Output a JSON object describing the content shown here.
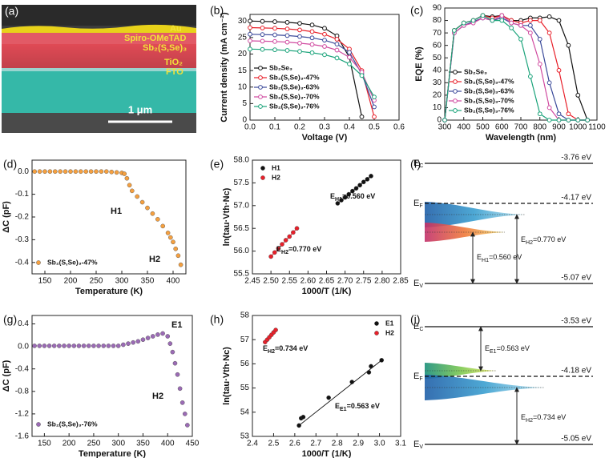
{
  "image_panel": {
    "panel": "(a)",
    "layers": [
      "Au",
      "Spiro-OMeTAD",
      "Sb₂(S,Se)₃",
      "TiO₂",
      "FTO"
    ],
    "scale_bar": "1 μm"
  },
  "chart_data": [
    {
      "panel": "(b)",
      "type": "line",
      "xlabel": "Voltage (V)",
      "ylabel": "Current density (mA cm⁻²)",
      "x": [
        0,
        0.05,
        0.1,
        0.15,
        0.2,
        0.25,
        0.3,
        0.35,
        0.4,
        0.45,
        0.5,
        0.55
      ],
      "xlim": [
        0,
        0.6
      ],
      "xticks": [
        {
          "value": 0,
          "label": "0.0"
        },
        0.1,
        0.2,
        0.3,
        0.4,
        0.5,
        0.6
      ],
      "ylim": [
        0,
        32
      ],
      "yticks": [
        0,
        5,
        10,
        15,
        20,
        25,
        30
      ],
      "legend": "lower left",
      "series": [
        {
          "name": "Sb₂Se₃",
          "color": "#111111",
          "values": [
            30,
            29.9,
            29.8,
            29.6,
            29.3,
            28.8,
            27.8,
            25.5,
            19,
            1,
            null,
            null
          ]
        },
        {
          "name": "Sb₂(S,Se)₃-47%",
          "color": "#e8202a",
          "values": [
            28,
            27.9,
            27.8,
            27.6,
            27.3,
            26.8,
            26,
            24.5,
            21.5,
            15,
            1,
            null
          ]
        },
        {
          "name": "Sb₂(S,Se)₃-63%",
          "color": "#3b4a9a",
          "values": [
            26,
            25.9,
            25.8,
            25.6,
            25.3,
            24.9,
            24.2,
            23,
            20.5,
            14,
            4,
            null
          ]
        },
        {
          "name": "Sb₂(S,Se)₃-70%",
          "color": "#d04aa0",
          "values": [
            24,
            23.9,
            23.8,
            23.6,
            23.3,
            22.9,
            22.3,
            21.2,
            19,
            14.5,
            6,
            null
          ]
        },
        {
          "name": "Sb₂(S,Se)₃-76%",
          "color": "#1aa37a",
          "values": [
            21.5,
            21.4,
            21.3,
            21.1,
            20.8,
            20.4,
            19.8,
            18.8,
            17,
            13.5,
            7,
            null
          ]
        }
      ]
    },
    {
      "panel": "(c)",
      "type": "line",
      "xlabel": "Wavelength (nm)",
      "ylabel": "EQE (%)",
      "x": [
        300,
        350,
        400,
        450,
        500,
        550,
        600,
        650,
        700,
        750,
        800,
        850,
        900,
        950,
        1000,
        1050
      ],
      "xlim": [
        300,
        1100
      ],
      "xticks": [
        300,
        400,
        500,
        600,
        700,
        800,
        900,
        1000,
        1100
      ],
      "ylim": [
        0,
        90
      ],
      "yticks": [
        0,
        10,
        20,
        30,
        40,
        50,
        60,
        70,
        80,
        90
      ],
      "legend": "lower left",
      "series": [
        {
          "name": "Sb₂Se₃",
          "color": "#111111",
          "values": [
            0,
            72,
            78,
            80,
            84,
            83,
            84,
            80,
            80,
            82,
            82,
            83,
            80,
            60,
            20,
            0
          ]
        },
        {
          "name": "Sb₂(S,Se)₃-47%",
          "color": "#e8202a",
          "values": [
            0,
            72,
            78,
            80,
            84,
            82,
            84,
            80,
            78,
            80,
            80,
            70,
            40,
            5,
            0,
            0
          ]
        },
        {
          "name": "Sb₂(S,Se)₃-63%",
          "color": "#3b4a9a",
          "values": [
            0,
            70,
            76,
            79,
            82,
            80,
            82,
            78,
            76,
            76,
            65,
            30,
            5,
            0,
            0,
            0
          ]
        },
        {
          "name": "Sb₂(S,Se)₃-70%",
          "color": "#d04aa0",
          "values": [
            0,
            70,
            76,
            78,
            82,
            80,
            84,
            78,
            76,
            70,
            45,
            10,
            0,
            0,
            0,
            0
          ]
        },
        {
          "name": "Sb₂(S,Se)₃-76%",
          "color": "#1aa37a",
          "values": [
            0,
            72,
            78,
            80,
            84,
            80,
            80,
            74,
            65,
            35,
            5,
            0,
            0,
            0,
            0,
            0
          ]
        }
      ]
    },
    {
      "panel": "(d)",
      "type": "scatter",
      "xlabel": "Temperature (K)",
      "ylabel": "ΔC (pF)",
      "x": [
        130,
        140,
        150,
        160,
        170,
        180,
        190,
        200,
        210,
        220,
        230,
        240,
        250,
        260,
        270,
        280,
        290,
        300,
        305,
        310,
        315,
        320,
        330,
        340,
        350,
        360,
        370,
        380,
        390,
        395,
        400,
        405,
        410,
        415
      ],
      "xlim": [
        125,
        425
      ],
      "xticks": [
        150,
        200,
        250,
        300,
        350,
        400
      ],
      "ylim": [
        -0.45,
        0.05
      ],
      "yticks": [
        -0.4,
        -0.3,
        -0.2,
        -0.1,
        {
          "value": 0,
          "label": "0.0"
        }
      ],
      "legend": "lower left",
      "series": [
        {
          "name": "Sb₂(S,Se)₃-47%",
          "color": "#f5a040",
          "values": [
            0,
            0,
            0,
            0,
            0,
            0,
            0,
            0,
            0,
            0,
            0,
            0,
            0,
            0,
            0,
            -0.002,
            -0.004,
            -0.006,
            -0.01,
            -0.03,
            -0.06,
            -0.085,
            -0.11,
            -0.135,
            -0.16,
            -0.185,
            -0.21,
            -0.24,
            -0.27,
            -0.29,
            -0.31,
            -0.34,
            -0.37,
            -0.41
          ]
        }
      ],
      "annotations": [
        {
          "text": "H1"
        },
        {
          "text": "H2"
        }
      ]
    },
    {
      "panel": "(e)",
      "type": "scatter",
      "xlabel": "1000/T (1/K)",
      "ylabel": "ln(tau·Vth·Nc)",
      "xlim": [
        2.45,
        2.85
      ],
      "xticks": [
        2.45,
        {
          "value": 2.5,
          "label": "2.50"
        },
        2.55,
        {
          "value": 2.6,
          "label": "2.60"
        },
        2.65,
        {
          "value": 2.7,
          "label": "2.70"
        },
        2.75,
        {
          "value": 2.8,
          "label": "2.80"
        },
        2.85
      ],
      "ylim": [
        55.5,
        58
      ],
      "yticks": [
        55.5,
        {
          "value": 56,
          "label": "56.0"
        },
        56.5,
        {
          "value": 57,
          "label": "57.0"
        },
        57.5,
        {
          "value": 58,
          "label": "58.0"
        }
      ],
      "legend": "upper left",
      "series": [
        {
          "name": "H1",
          "color": "#111111",
          "x": [
            2.68,
            2.69,
            2.7,
            2.71,
            2.72,
            2.73,
            2.74,
            2.75,
            2.76,
            2.77
          ],
          "values": [
            57.05,
            57.12,
            57.18,
            57.25,
            57.32,
            57.38,
            57.45,
            57.52,
            57.58,
            57.65
          ]
        },
        {
          "name": "H2",
          "color": "#e8202a",
          "x": [
            2.5,
            2.51,
            2.52,
            2.53,
            2.54,
            2.55,
            2.56,
            2.57
          ],
          "values": [
            55.88,
            55.97,
            56.06,
            56.15,
            56.24,
            56.32,
            56.41,
            56.5
          ]
        }
      ],
      "annotations": [
        {
          "symbol": "E",
          "sub": "H1",
          "text": "=0.560 eV"
        },
        {
          "symbol": "E",
          "sub": "H2",
          "text": "=0.770 eV"
        }
      ]
    },
    {
      "panel": "(g)",
      "type": "scatter",
      "xlabel": "Temperature (K)",
      "ylabel": "ΔC (pF)",
      "x": [
        130,
        140,
        150,
        160,
        170,
        180,
        190,
        200,
        210,
        220,
        230,
        240,
        250,
        260,
        270,
        280,
        290,
        300,
        310,
        320,
        330,
        340,
        350,
        360,
        370,
        380,
        390,
        400,
        405,
        410,
        415,
        420,
        425,
        430,
        435,
        440
      ],
      "xlim": [
        125,
        450
      ],
      "xticks": [
        150,
        200,
        250,
        300,
        350,
        400,
        450
      ],
      "ylim": [
        -1.6,
        0.55
      ],
      "yticks": [
        -1.6,
        -1.2,
        -0.8,
        -0.4,
        {
          "value": 0,
          "label": "0.0"
        },
        0.4
      ],
      "legend": "lower left",
      "series": [
        {
          "name": "Sb₂(S,Se)₃-76%",
          "color": "#9b6bb5",
          "values": [
            0.01,
            0.01,
            0.01,
            0.01,
            0.01,
            0.01,
            0.01,
            0.01,
            0.01,
            0.01,
            0.01,
            0.01,
            0.01,
            0.01,
            0.01,
            0.01,
            0.01,
            0.01,
            0.03,
            0.05,
            0.07,
            0.09,
            0.12,
            0.15,
            0.18,
            0.21,
            0.23,
            0.18,
            0.05,
            -0.1,
            -0.3,
            -0.5,
            -0.75,
            -1,
            -1.2,
            -1.4
          ]
        }
      ],
      "annotations": [
        {
          "text": "E1"
        },
        {
          "text": "H2"
        }
      ]
    },
    {
      "panel": "(h)",
      "type": "scatter",
      "xlabel": "1000/T (1/K)",
      "ylabel": "ln(tau·Vth·Nc)",
      "xlim": [
        2.4,
        3.1
      ],
      "xticks": [
        2.4,
        2.5,
        2.6,
        2.7,
        2.8,
        2.9,
        {
          "value": 3,
          "label": "3.0"
        },
        3.1
      ],
      "ylim": [
        53,
        58
      ],
      "yticks": [
        53,
        54,
        55,
        56,
        57,
        58
      ],
      "legend": "upper right",
      "series": [
        {
          "name": "E1",
          "color": "#111111",
          "x": [
            2.62,
            2.63,
            2.64,
            2.76,
            2.87,
            2.95,
            2.96,
            3.01
          ],
          "values": [
            53.45,
            53.75,
            53.8,
            54.6,
            55.25,
            55.65,
            55.9,
            56.15
          ]
        },
        {
          "name": "H2",
          "color": "#e8202a",
          "x": [
            2.46,
            2.47,
            2.48,
            2.49,
            2.5,
            2.51
          ],
          "values": [
            56.9,
            57,
            57.1,
            57.2,
            57.3,
            57.4
          ]
        }
      ],
      "annotations": [
        {
          "symbol": "E",
          "sub": "H2",
          "text": "=0.734 eV"
        },
        {
          "symbol": "E",
          "sub": "E1",
          "text": "=0.563 eV"
        }
      ]
    }
  ],
  "diagrams": [
    {
      "panel": "(f)",
      "levels": [
        {
          "symbol": "E",
          "sub": "C",
          "value": "-3.76 eV"
        },
        {
          "symbol": "E",
          "sub": "F",
          "value": "-4.17 eV"
        },
        {
          "symbol": "E",
          "sub": "V",
          "value": "-5.07 eV"
        }
      ],
      "transitions": [
        {
          "symbol": "E",
          "sub": "H1",
          "text": "=0.560 eV"
        },
        {
          "symbol": "E",
          "sub": "H2",
          "text": "=0.770 eV"
        }
      ]
    },
    {
      "panel": "(i)",
      "levels": [
        {
          "symbol": "E",
          "sub": "C",
          "value": "-3.53 eV"
        },
        {
          "symbol": "E",
          "sub": "F",
          "value": "-4.18 eV"
        },
        {
          "symbol": "E",
          "sub": "V",
          "value": "-5.05 eV"
        }
      ],
      "transitions": [
        {
          "symbol": "E",
          "sub": "E1",
          "text": "=0.563 eV"
        },
        {
          "symbol": "E",
          "sub": "H2",
          "text": "=0.734 eV"
        }
      ]
    }
  ]
}
